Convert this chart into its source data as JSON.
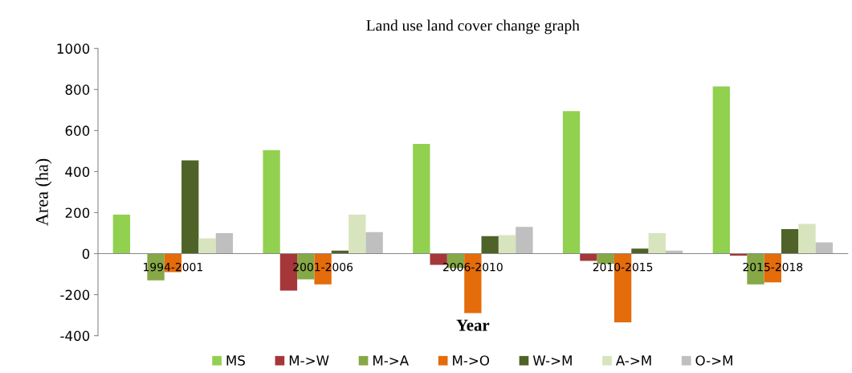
{
  "chart_data": {
    "type": "bar",
    "title": "Land use land cover change graph",
    "xlabel": "Year",
    "ylabel": "Area (ha)",
    "categories": [
      "1994-2001",
      "2001-2006",
      "2006-2010",
      "2010-2015",
      "2015-2018"
    ],
    "series": [
      {
        "name": "MS",
        "color": "#92d050",
        "values": [
          190,
          505,
          535,
          695,
          815
        ]
      },
      {
        "name": "M->W",
        "color": "#a5373a",
        "values": [
          0,
          -180,
          -55,
          -35,
          -10
        ]
      },
      {
        "name": "M->A",
        "color": "#86a847",
        "values": [
          -130,
          -125,
          -70,
          -50,
          -150
        ]
      },
      {
        "name": "M->O",
        "color": "#e46c0a",
        "values": [
          -90,
          -150,
          -290,
          -335,
          -140
        ]
      },
      {
        "name": "W->M",
        "color": "#4f6228",
        "values": [
          455,
          15,
          85,
          25,
          120
        ]
      },
      {
        "name": "A->M",
        "color": "#d7e4bd",
        "values": [
          75,
          190,
          90,
          100,
          145
        ]
      },
      {
        "name": "O->M",
        "color": "#bfbfbf",
        "values": [
          100,
          105,
          130,
          15,
          55
        ]
      }
    ],
    "ylim": [
      -400,
      1000
    ],
    "yticks": [
      -400,
      -200,
      0,
      200,
      400,
      600,
      800,
      1000
    ],
    "grid": false,
    "legend": "bottom"
  }
}
